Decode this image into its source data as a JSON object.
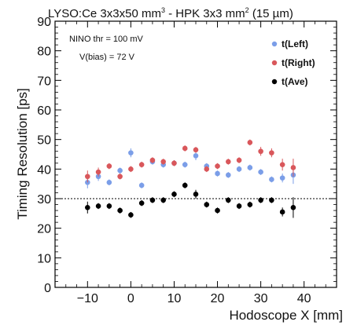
{
  "chart_data": {
    "type": "scatter",
    "title_main": "LYSO:Ce 3x3x50 mm",
    "title_sup1": "3",
    "title_mid": " - HPK 3x3 mm",
    "title_sup2": "2",
    "title_end": " (15 µm)",
    "xlabel": "Hodoscope X [mm]",
    "ylabel": "Timing Resolution [ps]",
    "xlim": [
      -17.5,
      47.5
    ],
    "ylim": [
      0,
      90
    ],
    "x_ticks": [
      -10,
      0,
      10,
      20,
      30,
      40
    ],
    "y_ticks": [
      0,
      10,
      20,
      30,
      40,
      50,
      60,
      70,
      80,
      90
    ],
    "reference_line_y": 30,
    "grid": false,
    "legend_position": "top-right",
    "annotations": [
      "NINO thr = 100 mV",
      "V(bias) = 72 V"
    ],
    "x": [
      -10,
      -7.5,
      -5,
      -2.5,
      0,
      2.5,
      5,
      7.5,
      10,
      12.5,
      15,
      17.5,
      20,
      22.5,
      25,
      27.5,
      30,
      32.5,
      35,
      37.5
    ],
    "series": [
      {
        "name": "t(Left)",
        "color": "#7b9ee8",
        "values": [
          35.5,
          37.5,
          35.5,
          39.5,
          45.5,
          34.5,
          42.5,
          41.5,
          42.0,
          41.5,
          44.5,
          41.0,
          38.5,
          38.0,
          40.0,
          40.5,
          39.0,
          36.5,
          37.0,
          38.0
        ],
        "errors": [
          2.0,
          1.5,
          1.0,
          1.0,
          1.5,
          1.0,
          1.0,
          1.0,
          1.0,
          1.0,
          1.5,
          1.0,
          1.0,
          1.0,
          1.0,
          1.0,
          1.0,
          1.0,
          1.5,
          3.0
        ]
      },
      {
        "name": "t(Right)",
        "color": "#d9575b",
        "values": [
          37.5,
          39.0,
          41.0,
          37.5,
          40.0,
          41.5,
          43.0,
          42.5,
          42.0,
          47.0,
          46.5,
          40.0,
          41.0,
          42.5,
          43.0,
          49.0,
          46.0,
          45.5,
          41.5,
          40.5
        ],
        "errors": [
          2.0,
          1.5,
          1.0,
          1.0,
          1.0,
          1.0,
          1.0,
          1.0,
          1.0,
          1.0,
          1.0,
          1.0,
          1.0,
          1.0,
          1.0,
          1.0,
          1.5,
          1.5,
          2.0,
          3.0
        ]
      },
      {
        "name": "t(Ave)",
        "color": "#000000",
        "values": [
          27.0,
          27.5,
          27.5,
          26.0,
          24.5,
          28.5,
          29.5,
          29.5,
          31.5,
          34.5,
          31.5,
          28.0,
          26.0,
          29.5,
          27.5,
          28.0,
          29.5,
          29.5,
          25.5,
          27.0
        ],
        "errors": [
          2.0,
          1.0,
          1.0,
          1.0,
          1.0,
          1.0,
          1.0,
          1.0,
          1.0,
          1.0,
          1.5,
          1.0,
          1.0,
          1.0,
          1.0,
          1.0,
          1.0,
          1.0,
          1.5,
          3.5
        ]
      }
    ]
  }
}
